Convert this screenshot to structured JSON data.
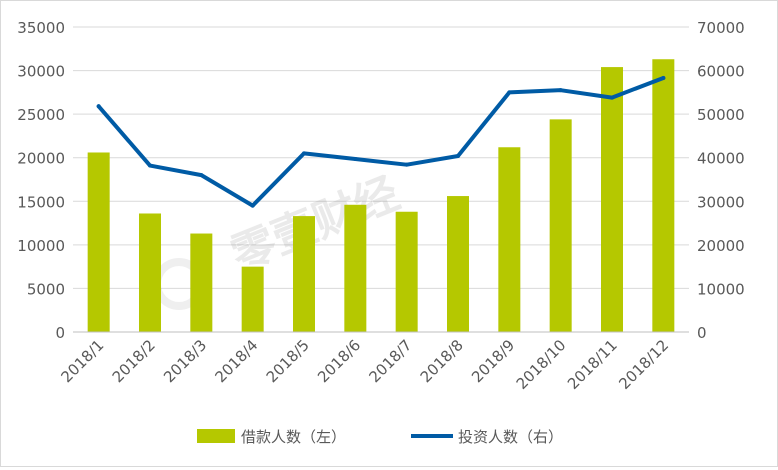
{
  "chart_data": {
    "type": "bar",
    "categories": [
      "2018/1",
      "2018/2",
      "2018/3",
      "2018/4",
      "2018/5",
      "2018/6",
      "2018/7",
      "2018/8",
      "2018/9",
      "2018/10",
      "2018/11",
      "2018/12"
    ],
    "series": [
      {
        "name": "借款人数（左）",
        "type": "bar",
        "axis": "left",
        "color": "#b5c800",
        "values": [
          20600,
          13600,
          11300,
          7500,
          13300,
          14600,
          13800,
          15600,
          21200,
          24400,
          30400,
          31300
        ]
      },
      {
        "name": "投资人数（右）",
        "type": "line",
        "axis": "right",
        "color": "#005ba5",
        "values": [
          51800,
          38200,
          36000,
          29000,
          41000,
          39700,
          38400,
          40400,
          55000,
          55500,
          53800,
          58300
        ]
      }
    ],
    "ylim_left": [
      0,
      35000
    ],
    "yticks_left": [
      "0",
      "5000",
      "10000",
      "15000",
      "20000",
      "25000",
      "30000",
      "35000"
    ],
    "ylim_right": [
      0,
      70000
    ],
    "yticks_right": [
      "0",
      "10000",
      "20000",
      "30000",
      "40000",
      "50000",
      "60000",
      "70000"
    ],
    "grid": true,
    "legend": "bottom",
    "watermark": "零壹财经"
  }
}
